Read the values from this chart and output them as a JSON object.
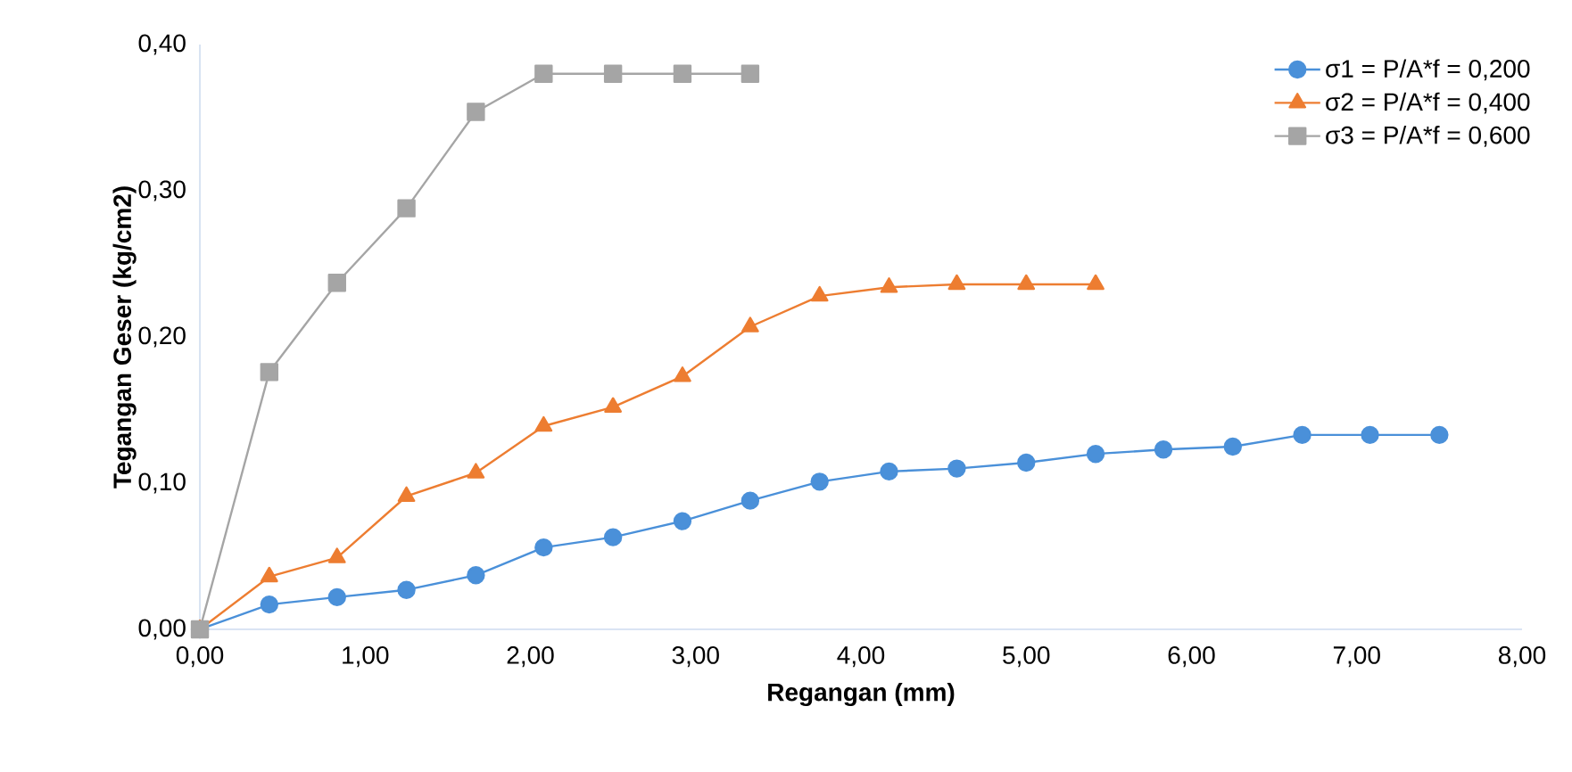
{
  "chart_data": {
    "type": "line",
    "xlabel": "Regangan (mm)",
    "ylabel": "Tegangan Geser (kg/cm2)",
    "xlim": [
      0,
      8
    ],
    "ylim": [
      0,
      0.4
    ],
    "xticks": [
      {
        "value": 0,
        "label": "0,00"
      },
      {
        "value": 1,
        "label": "1,00"
      },
      {
        "value": 2,
        "label": "2,00"
      },
      {
        "value": 3,
        "label": "3,00"
      },
      {
        "value": 4,
        "label": "4,00"
      },
      {
        "value": 5,
        "label": "5,00"
      },
      {
        "value": 6,
        "label": "6,00"
      },
      {
        "value": 7,
        "label": "7,00"
      },
      {
        "value": 8,
        "label": "8,00"
      }
    ],
    "yticks": [
      {
        "value": 0,
        "label": "0,00"
      },
      {
        "value": 0.1,
        "label": "0,10"
      },
      {
        "value": 0.2,
        "label": "0,20"
      },
      {
        "value": 0.3,
        "label": "0,30"
      },
      {
        "value": 0.4,
        "label": "0,40"
      }
    ],
    "legend": "top right",
    "grid": false,
    "series": [
      {
        "name": "σ1 = P/A*f = 0,200",
        "color": "#4a90d9",
        "marker": "circle",
        "x": [
          0,
          0.42,
          0.83,
          1.25,
          1.67,
          2.08,
          2.5,
          2.92,
          3.33,
          3.75,
          4.17,
          4.58,
          5.0,
          5.42,
          5.83,
          6.25,
          6.67,
          7.08,
          7.5
        ],
        "values": [
          0,
          0.017,
          0.022,
          0.027,
          0.037,
          0.056,
          0.063,
          0.074,
          0.088,
          0.101,
          0.108,
          0.11,
          0.114,
          0.12,
          0.123,
          0.125,
          0.133,
          0.133,
          0.133
        ]
      },
      {
        "name": "σ2 = P/A*f = 0,400",
        "color": "#ed7d31",
        "marker": "triangle",
        "x": [
          0,
          0.42,
          0.83,
          1.25,
          1.67,
          2.08,
          2.5,
          2.92,
          3.33,
          3.75,
          4.17,
          4.58,
          5.0,
          5.42
        ],
        "values": [
          0,
          0.036,
          0.049,
          0.091,
          0.107,
          0.139,
          0.152,
          0.173,
          0.207,
          0.228,
          0.234,
          0.236,
          0.236,
          0.236
        ]
      },
      {
        "name": "σ3 = P/A*f = 0,600",
        "color": "#a5a5a5",
        "marker": "square",
        "x": [
          0,
          0.42,
          0.83,
          1.25,
          1.67,
          2.08,
          2.5,
          2.92,
          3.33
        ],
        "values": [
          0,
          0.176,
          0.237,
          0.288,
          0.354,
          0.38,
          0.38,
          0.38,
          0.38
        ]
      }
    ]
  }
}
